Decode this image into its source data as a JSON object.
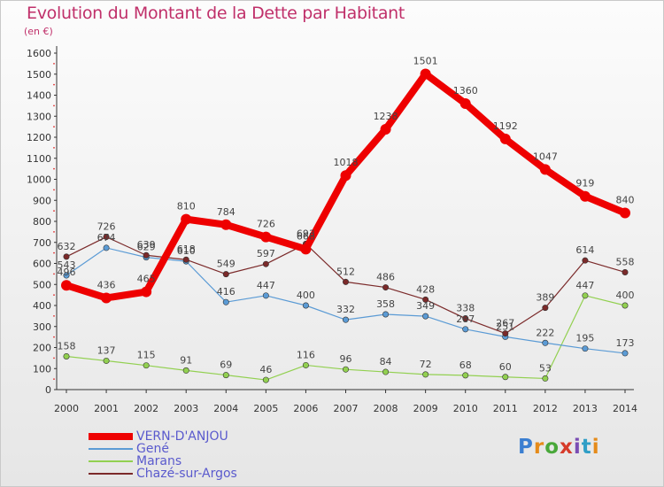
{
  "title": "Evolution du Montant de la Dette par Habitant",
  "subtitle": "(en €)",
  "logo": {
    "text": "Proxiti",
    "colors": [
      "#3b7fd1",
      "#e58b1a",
      "#49a83a",
      "#d63b2a",
      "#7a4db3",
      "#2f9ec6",
      "#e58b1a"
    ]
  },
  "chart_data": {
    "type": "line",
    "x": [
      "2000",
      "2001",
      "2002",
      "2003",
      "2004",
      "2005",
      "2006",
      "2007",
      "2008",
      "2009",
      "2010",
      "2011",
      "2012",
      "2013",
      "2014"
    ],
    "ylim": [
      0,
      1600
    ],
    "yticks": [
      0,
      100,
      200,
      300,
      400,
      500,
      600,
      700,
      800,
      900,
      1000,
      1100,
      1200,
      1300,
      1400,
      1500,
      1600
    ],
    "grid": false,
    "legend_position": "bottom-left",
    "series": [
      {
        "name": "VERN-D'ANJOU",
        "color": "#ee0000",
        "values": [
          496,
          436,
          465,
          810,
          784,
          726,
          668,
          1018,
          1238,
          1501,
          1360,
          1192,
          1047,
          919,
          840
        ],
        "labels": [
          "496",
          "436",
          "465",
          "810",
          "784",
          "726",
          "668",
          "1018",
          "1238",
          "1501",
          "1360",
          "1192",
          "1047",
          "919",
          "840"
        ]
      },
      {
        "name": "Gené",
        "color": "#5b9bd5",
        "values": [
          543,
          674,
          629,
          610,
          416,
          447,
          400,
          332,
          358,
          349,
          287,
          251,
          222,
          195,
          173
        ],
        "labels": [
          "543",
          "674",
          "629",
          "610",
          "416",
          "447",
          "400",
          "332",
          "358",
          "349",
          "287",
          "251",
          "222",
          "195",
          "173"
        ]
      },
      {
        "name": "Marans",
        "color": "#92d050",
        "values": [
          158,
          137,
          115,
          91,
          69,
          46,
          116,
          96,
          84,
          72,
          68,
          60,
          53,
          447,
          400
        ],
        "labels": [
          "158",
          "137",
          "115",
          "91",
          "69",
          "46",
          "116",
          "96",
          "84",
          "72",
          "68",
          "60",
          "53",
          "447",
          "400"
        ]
      },
      {
        "name": "Chazé-sur-Argos",
        "color": "#7b2a2a",
        "values": [
          632,
          726,
          639,
          618,
          549,
          597,
          693,
          512,
          486,
          428,
          338,
          267,
          389,
          614,
          558
        ],
        "labels": [
          "632",
          "726",
          "639",
          "618",
          "549",
          "597",
          "693",
          "512",
          "486",
          "428",
          "338",
          "267",
          "389",
          "614",
          "558"
        ]
      }
    ]
  }
}
